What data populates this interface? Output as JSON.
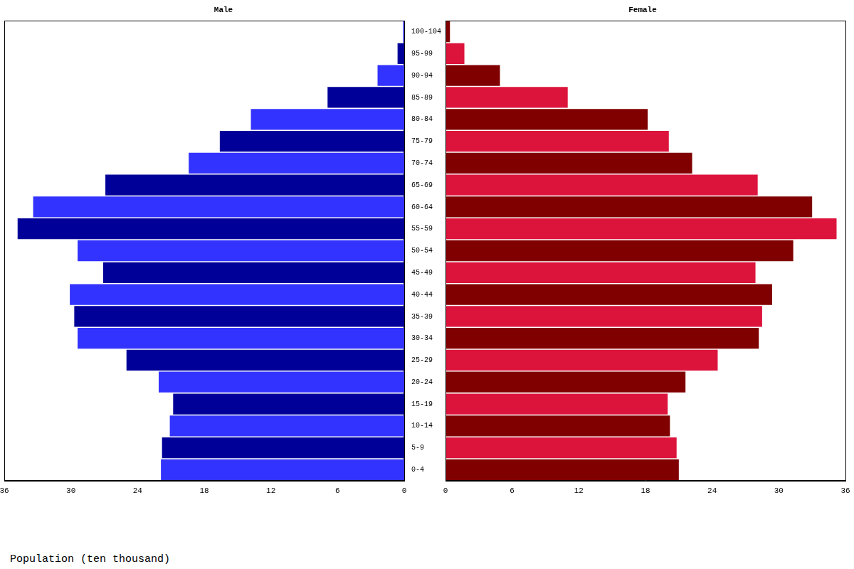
{
  "chart_data": [
    {
      "type": "bar",
      "title": "Male",
      "orientation": "horizontal",
      "xlabel": "Population (ten thousand)",
      "categories": [
        "0-4",
        "5-9",
        "10-14",
        "15-19",
        "20-24",
        "25-29",
        "30-34",
        "35-39",
        "40-44",
        "45-49",
        "50-54",
        "55-59",
        "60-64",
        "65-69",
        "70-74",
        "75-79",
        "80-84",
        "85-89",
        "90-94",
        "95-99",
        "100-104"
      ],
      "values": [
        21.9,
        21.8,
        21.1,
        20.8,
        22.1,
        25.0,
        29.4,
        29.7,
        30.1,
        27.1,
        29.4,
        34.8,
        33.4,
        26.9,
        19.4,
        16.6,
        13.8,
        6.9,
        2.4,
        0.6,
        0.1
      ],
      "colors": [
        "#3333ff",
        "#000099",
        "#3333ff",
        "#000099",
        "#3333ff",
        "#000099",
        "#3333ff",
        "#000099",
        "#3333ff",
        "#000099",
        "#3333ff",
        "#000099",
        "#3333ff",
        "#000099",
        "#3333ff",
        "#000099",
        "#3333ff",
        "#000099",
        "#3333ff",
        "#000099",
        "#3333ff"
      ],
      "xlim": [
        36,
        0
      ],
      "xticks": [
        0,
        6,
        12,
        18,
        24,
        30,
        36
      ],
      "grid": false
    },
    {
      "type": "bar",
      "title": "Female",
      "orientation": "horizontal",
      "tick_labels": "x",
      "categories": [
        "0-4",
        "5-9",
        "10-14",
        "15-19",
        "20-24",
        "25-29",
        "30-34",
        "35-39",
        "40-44",
        "45-49",
        "50-54",
        "55-59",
        "60-64",
        "65-69",
        "70-74",
        "75-79",
        "80-84",
        "85-89",
        "90-94",
        "95-99",
        "100-104"
      ],
      "values": [
        21.0,
        20.8,
        20.2,
        20.0,
        21.6,
        24.5,
        28.2,
        28.5,
        29.4,
        27.9,
        31.3,
        35.2,
        33.0,
        28.1,
        22.2,
        20.1,
        18.2,
        11.0,
        4.9,
        1.7,
        0.4
      ],
      "colors": [
        "#800000",
        "#dc143c",
        "#800000",
        "#dc143c",
        "#800000",
        "#dc143c",
        "#800000",
        "#dc143c",
        "#800000",
        "#dc143c",
        "#800000",
        "#dc143c",
        "#800000",
        "#dc143c",
        "#800000",
        "#dc143c",
        "#800000",
        "#dc143c",
        "#800000",
        "#dc143c",
        "#800000"
      ],
      "xlim": [
        0,
        36
      ],
      "xticks": [
        0,
        6,
        12,
        18,
        24,
        30,
        36
      ],
      "grid": false
    }
  ]
}
